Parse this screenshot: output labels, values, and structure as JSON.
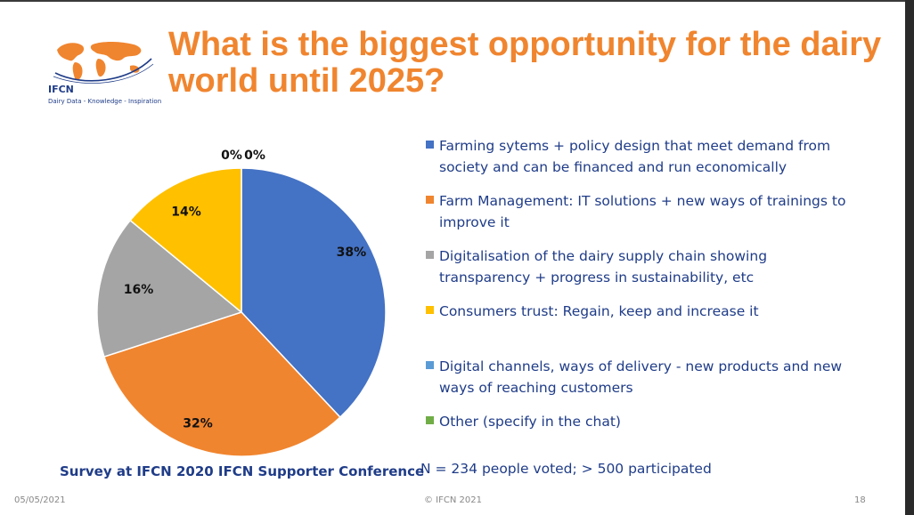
{
  "logo": {
    "brand": "IFCN",
    "tagline": "Dairy Data - Knowledge - Inspiration",
    "logo_color": "#f0852f"
  },
  "title": "What is the biggest opportunity for the dairy world until 2025?",
  "chart_data": {
    "type": "pie",
    "title": "What is the biggest opportunity for the dairy world until 2025?",
    "legend_placement": "right",
    "series": [
      {
        "label": "Farming sytems + policy design that meet demand from society and can be financed and run economically",
        "value": 38,
        "display": "38%",
        "color": "#4472c4"
      },
      {
        "label": "Farm Management: IT solutions + new ways of trainings to improve it",
        "value": 32,
        "display": "32%",
        "color": "#f0852f"
      },
      {
        "label": "Digitalisation of the dairy supply chain showing transparency + progress in sustainability, etc",
        "value": 16,
        "display": "16%",
        "color": "#a5a5a5"
      },
      {
        "label": "Consumers trust: Regain, keep and increase it",
        "value": 14,
        "display": "14%",
        "color": "#ffc000"
      },
      {
        "label": "Digital channels, ways of delivery - new products and new ways of reaching customers",
        "value": 0,
        "display": "0%",
        "color": "#5b9bd5"
      },
      {
        "label": "Other (specify in the chat)",
        "value": 0,
        "display": "0%",
        "color": "#70ad47"
      }
    ]
  },
  "captions": {
    "survey": "Survey at IFCN 2020 IFCN Supporter Conference",
    "votes": "N = 234 people voted; > 500 participated"
  },
  "footer": {
    "date": "05/05/2021",
    "copyright": "© IFCN 2021",
    "page": "18"
  }
}
